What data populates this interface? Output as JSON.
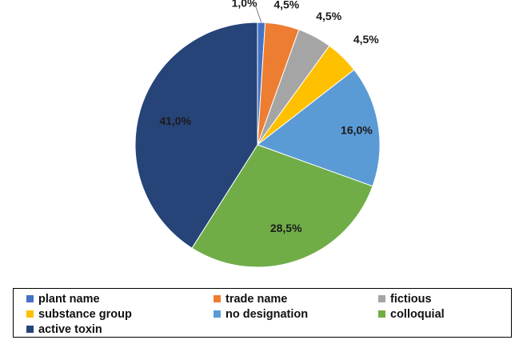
{
  "chart_data": {
    "type": "pie",
    "title": "",
    "start_angle_deg": 0,
    "direction": "clockwise",
    "legend_position": "bottom",
    "slices": [
      {
        "name": "plant name",
        "value": 1.0,
        "label": "1,0%",
        "color": "#4472C4"
      },
      {
        "name": "trade name",
        "value": 4.5,
        "label": "4,5%",
        "color": "#ED7D31"
      },
      {
        "name": "fictious",
        "value": 4.5,
        "label": "4,5%",
        "color": "#A5A5A5"
      },
      {
        "name": "substance group",
        "value": 4.5,
        "label": "4,5%",
        "color": "#FFC000"
      },
      {
        "name": "no designation",
        "value": 16.0,
        "label": "16,0%",
        "color": "#5B9BD5"
      },
      {
        "name": "colloquial",
        "value": 28.5,
        "label": "28,5%",
        "color": "#70AD47"
      },
      {
        "name": "active toxin",
        "value": 41.0,
        "label": "41,0%",
        "color": "#264478"
      }
    ]
  }
}
